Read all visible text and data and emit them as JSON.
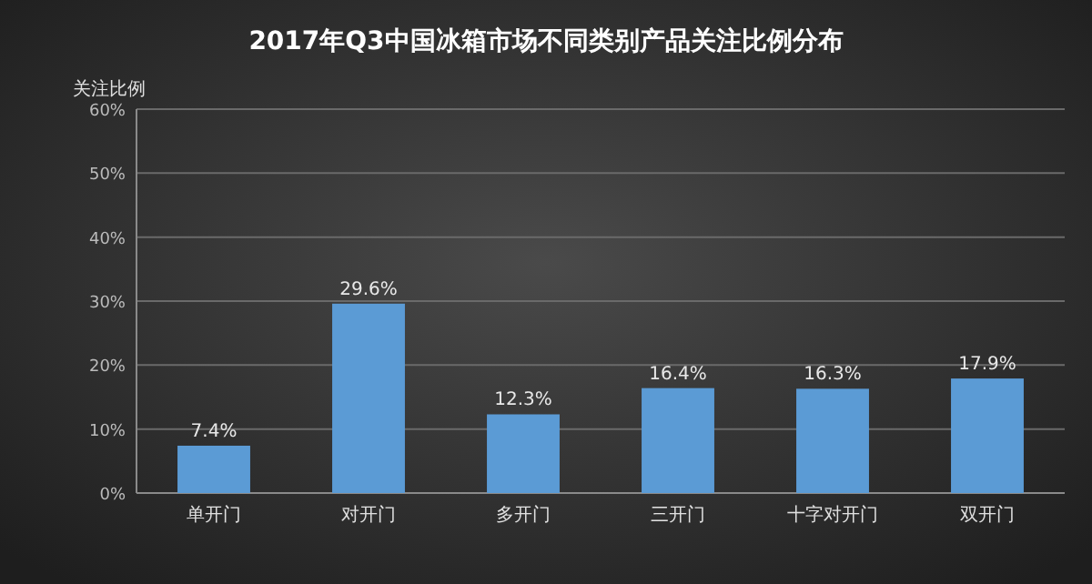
{
  "chart_data": {
    "type": "bar",
    "title": "2017年Q3中国冰箱市场不同类别产品关注比例分布",
    "ylabel": "关注比例",
    "categories": [
      "单开门",
      "对开门",
      "多开门",
      "三开门",
      "十字对开门",
      "双开门"
    ],
    "values": [
      7.4,
      29.6,
      12.3,
      16.4,
      16.3,
      17.9
    ],
    "value_labels": [
      "7.4%",
      "29.6%",
      "12.3%",
      "16.4%",
      "16.3%",
      "17.9%"
    ],
    "color": "#5b9bd5",
    "ylim": [
      0,
      60
    ],
    "yticks": [
      {
        "value": 0,
        "label": "0%"
      },
      {
        "value": 10,
        "label": "10%"
      },
      {
        "value": 20,
        "label": "20%"
      },
      {
        "value": 30,
        "label": "30%"
      },
      {
        "value": 40,
        "label": "40%"
      },
      {
        "value": 50,
        "label": "50%"
      },
      {
        "value": 60,
        "label": "60%"
      }
    ],
    "grid": "y"
  }
}
